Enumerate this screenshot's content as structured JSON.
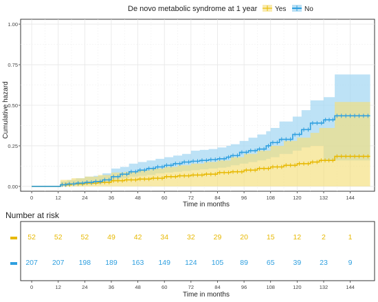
{
  "legend": {
    "title": "De novo metabolic syndrome at 1 year",
    "items": [
      {
        "label": "Yes",
        "color": "#E7B800"
      },
      {
        "label": "No",
        "color": "#2E9FDF"
      }
    ]
  },
  "chart_data": {
    "type": "line",
    "subtype": "step-cumulative-hazard",
    "title": "",
    "xlabel": "Time in months",
    "ylabel": "Cumulative hazard",
    "xlim": [
      -5,
      155
    ],
    "ylim": [
      -0.03,
      1.03
    ],
    "x_ticks": [
      0,
      12,
      24,
      36,
      48,
      60,
      72,
      84,
      96,
      108,
      120,
      132,
      144
    ],
    "y_ticks": [
      0.0,
      0.25,
      0.5,
      0.75,
      1.0
    ],
    "y_tick_labels": [
      "0.00",
      "0.25",
      "0.50",
      "0.75",
      "1.00"
    ],
    "grid": true,
    "legend_position": "top",
    "series": [
      {
        "name": "Yes",
        "color": "#E7B800",
        "fill": "#F5DE7A",
        "steps": [
          [
            0,
            0
          ],
          [
            12,
            0
          ],
          [
            13,
            0.01
          ],
          [
            18,
            0.015
          ],
          [
            24,
            0.02
          ],
          [
            30,
            0.025
          ],
          [
            36,
            0.035
          ],
          [
            42,
            0.04
          ],
          [
            48,
            0.045
          ],
          [
            54,
            0.05
          ],
          [
            60,
            0.06
          ],
          [
            66,
            0.065
          ],
          [
            72,
            0.07
          ],
          [
            78,
            0.075
          ],
          [
            84,
            0.085
          ],
          [
            90,
            0.09
          ],
          [
            96,
            0.1
          ],
          [
            102,
            0.11
          ],
          [
            108,
            0.12
          ],
          [
            114,
            0.13
          ],
          [
            120,
            0.14
          ],
          [
            126,
            0.15
          ],
          [
            130,
            0.16
          ],
          [
            137,
            0.185
          ],
          [
            153,
            0.185
          ]
        ],
        "lower": [
          [
            0,
            0
          ],
          [
            12,
            0
          ],
          [
            13,
            0
          ],
          [
            18,
            0
          ],
          [
            24,
            0
          ],
          [
            30,
            0
          ],
          [
            36,
            0
          ],
          [
            42,
            0
          ],
          [
            48,
            0
          ],
          [
            54,
            0
          ],
          [
            60,
            0
          ],
          [
            66,
            0
          ],
          [
            72,
            0
          ],
          [
            78,
            0
          ],
          [
            84,
            0
          ],
          [
            90,
            0
          ],
          [
            96,
            0
          ],
          [
            102,
            0
          ],
          [
            108,
            0
          ],
          [
            114,
            0
          ],
          [
            120,
            0
          ],
          [
            126,
            0
          ],
          [
            130,
            0
          ],
          [
            137,
            0
          ],
          [
            153,
            0
          ]
        ],
        "upper": [
          [
            0,
            0
          ],
          [
            12,
            0
          ],
          [
            13,
            0.04
          ],
          [
            18,
            0.05
          ],
          [
            24,
            0.06
          ],
          [
            30,
            0.07
          ],
          [
            36,
            0.085
          ],
          [
            42,
            0.09
          ],
          [
            48,
            0.1
          ],
          [
            54,
            0.11
          ],
          [
            60,
            0.12
          ],
          [
            66,
            0.13
          ],
          [
            72,
            0.14
          ],
          [
            78,
            0.15
          ],
          [
            84,
            0.16
          ],
          [
            90,
            0.18
          ],
          [
            96,
            0.2
          ],
          [
            102,
            0.22
          ],
          [
            108,
            0.25
          ],
          [
            114,
            0.28
          ],
          [
            120,
            0.3
          ],
          [
            126,
            0.33
          ],
          [
            130,
            0.36
          ],
          [
            137,
            0.52
          ],
          [
            153,
            0.52
          ]
        ]
      },
      {
        "name": "No",
        "color": "#2E9FDF",
        "fill": "#A7D8F3",
        "steps": [
          [
            0,
            0
          ],
          [
            12,
            0
          ],
          [
            13,
            0.01
          ],
          [
            16,
            0.015
          ],
          [
            20,
            0.02
          ],
          [
            24,
            0.025
          ],
          [
            28,
            0.03
          ],
          [
            32,
            0.04
          ],
          [
            36,
            0.06
          ],
          [
            40,
            0.075
          ],
          [
            44,
            0.09
          ],
          [
            48,
            0.1
          ],
          [
            52,
            0.11
          ],
          [
            56,
            0.12
          ],
          [
            60,
            0.13
          ],
          [
            64,
            0.14
          ],
          [
            68,
            0.15
          ],
          [
            72,
            0.155
          ],
          [
            76,
            0.16
          ],
          [
            80,
            0.165
          ],
          [
            84,
            0.17
          ],
          [
            88,
            0.18
          ],
          [
            90,
            0.19
          ],
          [
            94,
            0.21
          ],
          [
            98,
            0.22
          ],
          [
            102,
            0.23
          ],
          [
            106,
            0.25
          ],
          [
            108,
            0.27
          ],
          [
            112,
            0.29
          ],
          [
            118,
            0.32
          ],
          [
            122,
            0.35
          ],
          [
            126,
            0.39
          ],
          [
            132,
            0.41
          ],
          [
            137,
            0.435
          ],
          [
            153,
            0.435
          ]
        ],
        "lower": [
          [
            0,
            0
          ],
          [
            12,
            0
          ],
          [
            13,
            0
          ],
          [
            16,
            0.002
          ],
          [
            20,
            0.005
          ],
          [
            24,
            0.007
          ],
          [
            28,
            0.01
          ],
          [
            32,
            0.015
          ],
          [
            36,
            0.025
          ],
          [
            40,
            0.04
          ],
          [
            44,
            0.05
          ],
          [
            48,
            0.06
          ],
          [
            52,
            0.065
          ],
          [
            56,
            0.07
          ],
          [
            60,
            0.08
          ],
          [
            64,
            0.085
          ],
          [
            68,
            0.09
          ],
          [
            72,
            0.095
          ],
          [
            76,
            0.1
          ],
          [
            80,
            0.105
          ],
          [
            84,
            0.11
          ],
          [
            88,
            0.115
          ],
          [
            90,
            0.12
          ],
          [
            94,
            0.13
          ],
          [
            98,
            0.14
          ],
          [
            102,
            0.15
          ],
          [
            106,
            0.16
          ],
          [
            108,
            0.17
          ],
          [
            112,
            0.18
          ],
          [
            118,
            0.2
          ],
          [
            122,
            0.22
          ],
          [
            126,
            0.24
          ],
          [
            132,
            0.25
          ],
          [
            137,
            0.16
          ],
          [
            153,
            0.16
          ]
        ],
        "upper": [
          [
            0,
            0
          ],
          [
            12,
            0
          ],
          [
            13,
            0.03
          ],
          [
            16,
            0.04
          ],
          [
            20,
            0.05
          ],
          [
            24,
            0.06
          ],
          [
            28,
            0.065
          ],
          [
            32,
            0.08
          ],
          [
            36,
            0.11
          ],
          [
            40,
            0.12
          ],
          [
            44,
            0.14
          ],
          [
            48,
            0.15
          ],
          [
            52,
            0.16
          ],
          [
            56,
            0.17
          ],
          [
            60,
            0.18
          ],
          [
            64,
            0.19
          ],
          [
            68,
            0.2
          ],
          [
            72,
            0.22
          ],
          [
            76,
            0.225
          ],
          [
            80,
            0.23
          ],
          [
            84,
            0.24
          ],
          [
            88,
            0.25
          ],
          [
            90,
            0.26
          ],
          [
            94,
            0.28
          ],
          [
            98,
            0.3
          ],
          [
            102,
            0.32
          ],
          [
            106,
            0.34
          ],
          [
            108,
            0.36
          ],
          [
            112,
            0.4
          ],
          [
            118,
            0.43
          ],
          [
            122,
            0.47
          ],
          [
            126,
            0.53
          ],
          [
            132,
            0.55
          ],
          [
            137,
            0.69
          ],
          [
            153,
            0.69
          ]
        ]
      }
    ]
  },
  "risk_table": {
    "title": "Number at risk",
    "xlabel": "Time in months",
    "x_ticks": [
      0,
      12,
      24,
      36,
      48,
      60,
      72,
      84,
      96,
      108,
      120,
      132,
      144
    ],
    "rows": [
      {
        "name": "Yes",
        "color": "#E7B800",
        "values": [
          52,
          52,
          52,
          49,
          42,
          34,
          32,
          29,
          20,
          15,
          12,
          2,
          1
        ]
      },
      {
        "name": "No",
        "color": "#2E9FDF",
        "values": [
          207,
          207,
          198,
          189,
          163,
          149,
          124,
          105,
          89,
          65,
          39,
          23,
          9
        ]
      }
    ]
  }
}
